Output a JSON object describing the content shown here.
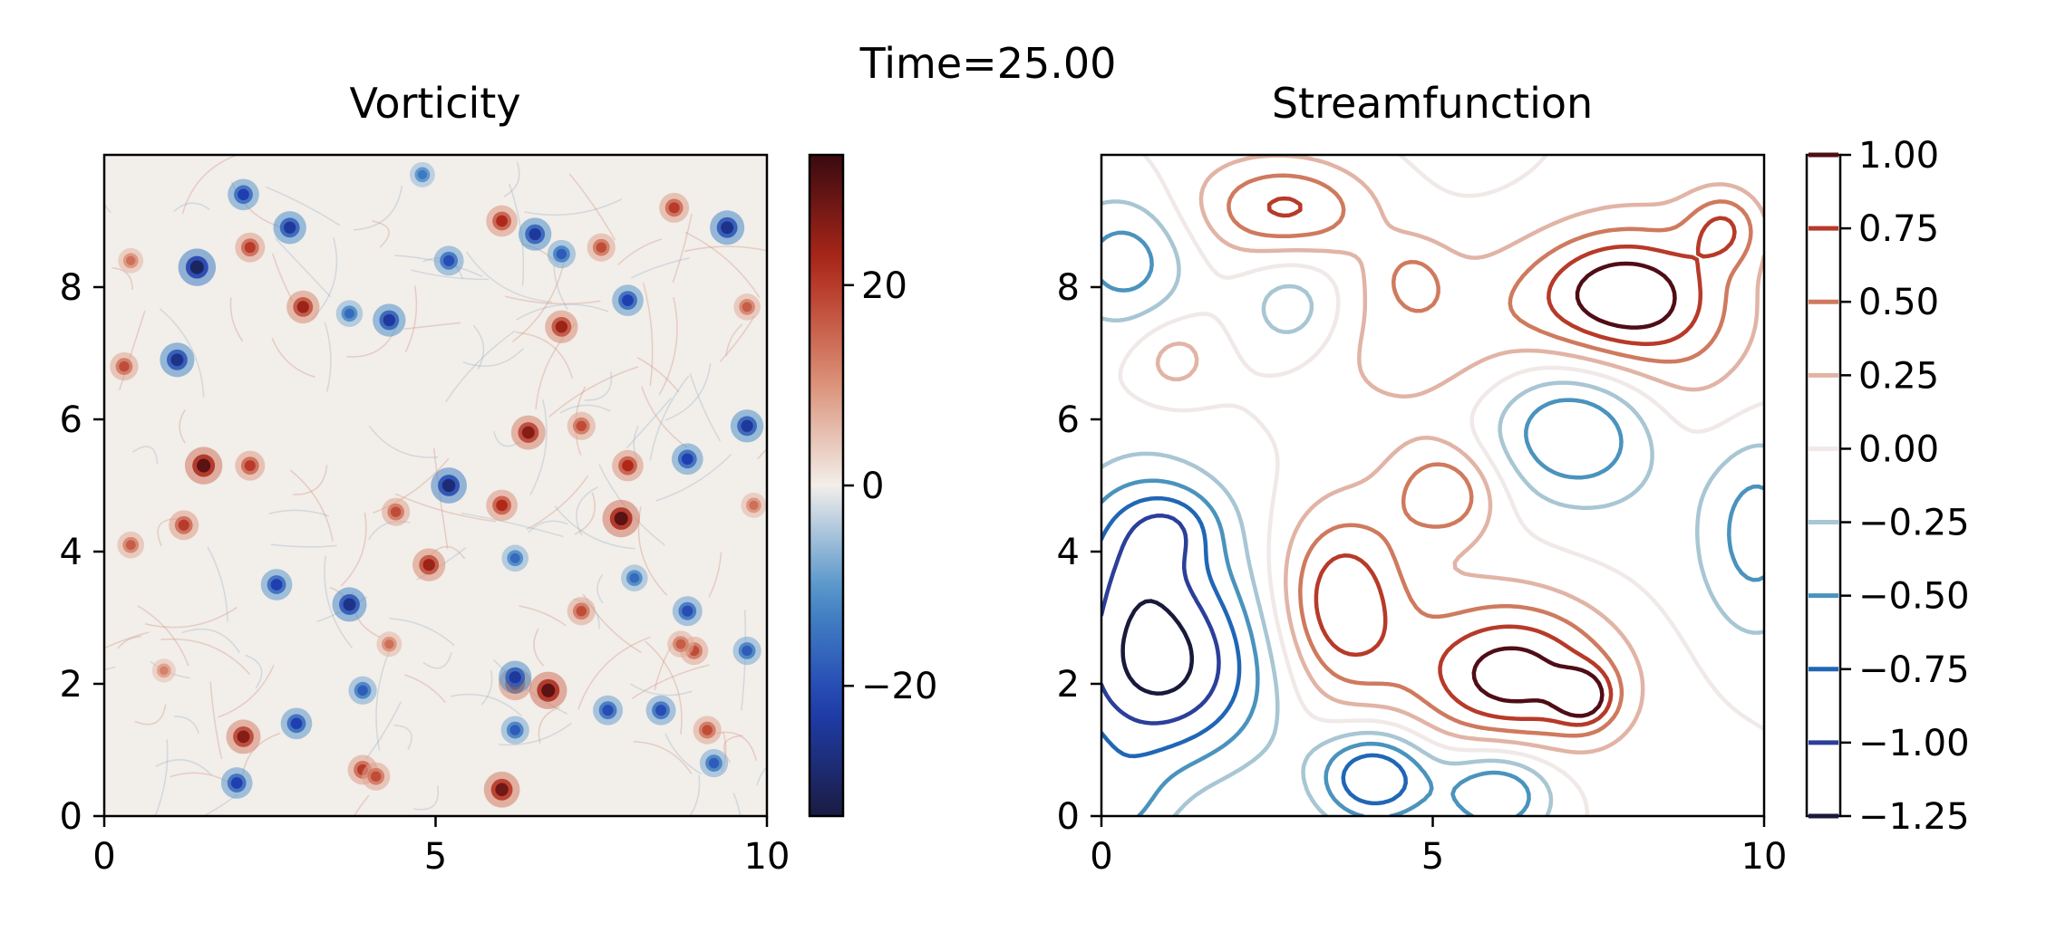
{
  "suptitle": "Time=25.00",
  "chart_data": [
    {
      "type": "heatmap",
      "title": "Vorticity",
      "xlabel": "",
      "ylabel": "",
      "xlim": [
        0,
        10
      ],
      "ylim": [
        0,
        10
      ],
      "xticks": [
        0,
        5,
        10
      ],
      "yticks": [
        0,
        2,
        4,
        6,
        8
      ],
      "grid": false,
      "colormap": [
        "#1a1b42",
        "#1f3fb0",
        "#4a8ec8",
        "#f2eeea",
        "#d98a70",
        "#b0281a",
        "#3a0a10"
      ],
      "colorbar": {
        "range": [
          -33,
          33
        ],
        "ticks": [
          -20,
          0,
          20
        ],
        "tick_labels": [
          "−20",
          "0",
          "20"
        ]
      },
      "vortices": [
        {
          "x": 0.4,
          "y": 8.4,
          "v": 14
        },
        {
          "x": 1.4,
          "y": 8.3,
          "v": -30
        },
        {
          "x": 2.1,
          "y": 9.4,
          "v": -22
        },
        {
          "x": 2.2,
          "y": 8.6,
          "v": 20
        },
        {
          "x": 2.8,
          "y": 8.9,
          "v": -24
        },
        {
          "x": 3.0,
          "y": 7.7,
          "v": 24
        },
        {
          "x": 3.7,
          "y": 7.6,
          "v": -16
        },
        {
          "x": 4.3,
          "y": 7.5,
          "v": -24
        },
        {
          "x": 4.8,
          "y": 9.7,
          "v": -14
        },
        {
          "x": 5.2,
          "y": 8.4,
          "v": -20
        },
        {
          "x": 6.0,
          "y": 9.0,
          "v": 22
        },
        {
          "x": 6.5,
          "y": 8.8,
          "v": -24
        },
        {
          "x": 6.9,
          "y": 8.5,
          "v": -18
        },
        {
          "x": 6.9,
          "y": 7.4,
          "v": 24
        },
        {
          "x": 7.5,
          "y": 8.6,
          "v": 18
        },
        {
          "x": 7.9,
          "y": 7.8,
          "v": -22
        },
        {
          "x": 8.6,
          "y": 9.2,
          "v": 20
        },
        {
          "x": 9.4,
          "y": 8.9,
          "v": -26
        },
        {
          "x": 9.7,
          "y": 7.7,
          "v": 16
        },
        {
          "x": 1.1,
          "y": 6.9,
          "v": -26
        },
        {
          "x": 0.3,
          "y": 6.8,
          "v": 18
        },
        {
          "x": 0.4,
          "y": 4.1,
          "v": 16
        },
        {
          "x": 1.2,
          "y": 4.4,
          "v": 20
        },
        {
          "x": 1.5,
          "y": 5.3,
          "v": 30
        },
        {
          "x": 2.2,
          "y": 5.3,
          "v": 20
        },
        {
          "x": 5.2,
          "y": 5.0,
          "v": -28
        },
        {
          "x": 6.4,
          "y": 5.8,
          "v": 26
        },
        {
          "x": 7.2,
          "y": 5.9,
          "v": 18
        },
        {
          "x": 7.9,
          "y": 5.3,
          "v": 22
        },
        {
          "x": 8.8,
          "y": 5.4,
          "v": -22
        },
        {
          "x": 9.7,
          "y": 5.9,
          "v": -24
        },
        {
          "x": 9.8,
          "y": 4.7,
          "v": 14
        },
        {
          "x": 7.8,
          "y": 4.5,
          "v": 30
        },
        {
          "x": 6.0,
          "y": 4.7,
          "v": 22
        },
        {
          "x": 4.4,
          "y": 4.6,
          "v": 18
        },
        {
          "x": 2.6,
          "y": 3.5,
          "v": -22
        },
        {
          "x": 3.7,
          "y": 3.2,
          "v": -26
        },
        {
          "x": 4.9,
          "y": 3.8,
          "v": 24
        },
        {
          "x": 4.3,
          "y": 2.6,
          "v": 14
        },
        {
          "x": 7.2,
          "y": 3.1,
          "v": 18
        },
        {
          "x": 8.0,
          "y": 3.6,
          "v": -16
        },
        {
          "x": 8.8,
          "y": 3.1,
          "v": -20
        },
        {
          "x": 9.7,
          "y": 2.5,
          "v": -18
        },
        {
          "x": 8.9,
          "y": 2.5,
          "v": 18
        },
        {
          "x": 0.9,
          "y": 2.2,
          "v": 12
        },
        {
          "x": 6.2,
          "y": 2.0,
          "v": 24
        },
        {
          "x": 6.7,
          "y": 1.9,
          "v": 30
        },
        {
          "x": 6.2,
          "y": 3.9,
          "v": -16
        },
        {
          "x": 7.6,
          "y": 1.6,
          "v": -20
        },
        {
          "x": 8.4,
          "y": 1.6,
          "v": -20
        },
        {
          "x": 9.1,
          "y": 1.3,
          "v": 18
        },
        {
          "x": 6.2,
          "y": 2.1,
          "v": -24
        },
        {
          "x": 2.1,
          "y": 1.2,
          "v": 26
        },
        {
          "x": 2.0,
          "y": 0.5,
          "v": -22
        },
        {
          "x": 3.9,
          "y": 0.7,
          "v": 20
        },
        {
          "x": 4.1,
          "y": 0.6,
          "v": 18
        },
        {
          "x": 6.0,
          "y": 0.4,
          "v": 28
        },
        {
          "x": 2.9,
          "y": 1.4,
          "v": -22
        },
        {
          "x": 3.9,
          "y": 1.9,
          "v": -18
        },
        {
          "x": 6.2,
          "y": 1.3,
          "v": -18
        },
        {
          "x": 8.7,
          "y": 2.6,
          "v": 16
        },
        {
          "x": 9.2,
          "y": 0.8,
          "v": -18
        }
      ]
    },
    {
      "type": "contour",
      "title": "Streamfunction",
      "xlabel": "",
      "ylabel": "",
      "xlim": [
        0,
        10
      ],
      "ylim": [
        0,
        10
      ],
      "xticks": [
        0,
        5,
        10
      ],
      "yticks": [
        0,
        2,
        4,
        6,
        8
      ],
      "grid": false,
      "levels": [
        -1.25,
        -1.0,
        -0.75,
        -0.5,
        -0.25,
        0.0,
        0.25,
        0.5,
        0.75,
        1.0
      ],
      "level_labels": [
        "−1.25",
        "−1.00",
        "−0.75",
        "−0.50",
        "−0.25",
        "0.00",
        "0.25",
        "0.50",
        "0.75",
        "1.00"
      ],
      "level_colors": [
        "#191a3a",
        "#2b3f9a",
        "#2066b6",
        "#4a93bd",
        "#a8c6d3",
        "#f0e9e8",
        "#e1b4a6",
        "#cf7a5e",
        "#b73a29",
        "#4f0d16"
      ],
      "centers": [
        {
          "x": 0.9,
          "y": 2.2,
          "a": -1.3,
          "sx": 1.2,
          "sy": 1.1
        },
        {
          "x": 0.5,
          "y": 4.1,
          "a": -0.65,
          "sx": 0.8,
          "sy": 0.9
        },
        {
          "x": 1.1,
          "y": 4.4,
          "a": -0.35,
          "sx": 0.5,
          "sy": 0.4
        },
        {
          "x": 7.2,
          "y": 5.9,
          "a": -0.95,
          "sx": 1.0,
          "sy": 0.8
        },
        {
          "x": 4.1,
          "y": 0.6,
          "a": -1.0,
          "sx": 0.6,
          "sy": 0.5
        },
        {
          "x": 6.0,
          "y": 0.4,
          "a": -0.75,
          "sx": 0.6,
          "sy": 0.5
        },
        {
          "x": 0.4,
          "y": 8.4,
          "a": -0.65,
          "sx": 0.7,
          "sy": 0.7
        },
        {
          "x": 2.9,
          "y": 7.7,
          "a": -0.55,
          "sx": 0.6,
          "sy": 0.6
        },
        {
          "x": 9.9,
          "y": 4.4,
          "a": -0.6,
          "sx": 0.6,
          "sy": 1.2
        },
        {
          "x": 0.2,
          "y": 0.1,
          "a": -0.45,
          "sx": 0.6,
          "sy": 0.6
        },
        {
          "x": 3.6,
          "y": 3.2,
          "a": 1.0,
          "sx": 0.7,
          "sy": 1.0
        },
        {
          "x": 6.2,
          "y": 2.1,
          "a": 1.15,
          "sx": 1.1,
          "sy": 0.8
        },
        {
          "x": 5.2,
          "y": 4.9,
          "a": 0.65,
          "sx": 0.55,
          "sy": 0.5
        },
        {
          "x": 7.9,
          "y": 7.9,
          "a": 1.05,
          "sx": 1.0,
          "sy": 0.7
        },
        {
          "x": 2.8,
          "y": 9.2,
          "a": 0.72,
          "sx": 0.9,
          "sy": 0.5
        },
        {
          "x": 7.3,
          "y": 1.8,
          "a": 0.7,
          "sx": 0.3,
          "sy": 0.3
        },
        {
          "x": 9.4,
          "y": 8.9,
          "a": 0.62,
          "sx": 0.4,
          "sy": 0.4
        },
        {
          "x": 5.0,
          "y": 7.4,
          "a": 0.45,
          "sx": 1.6,
          "sy": 1.0
        },
        {
          "x": 8.6,
          "y": 6.4,
          "a": 0.4,
          "sx": 1.2,
          "sy": 1.0
        },
        {
          "x": 1.1,
          "y": 6.9,
          "a": 0.35,
          "sx": 0.4,
          "sy": 0.4
        },
        {
          "x": 4.7,
          "y": 8.2,
          "a": 0.3,
          "sx": 0.4,
          "sy": 0.4
        }
      ]
    }
  ]
}
